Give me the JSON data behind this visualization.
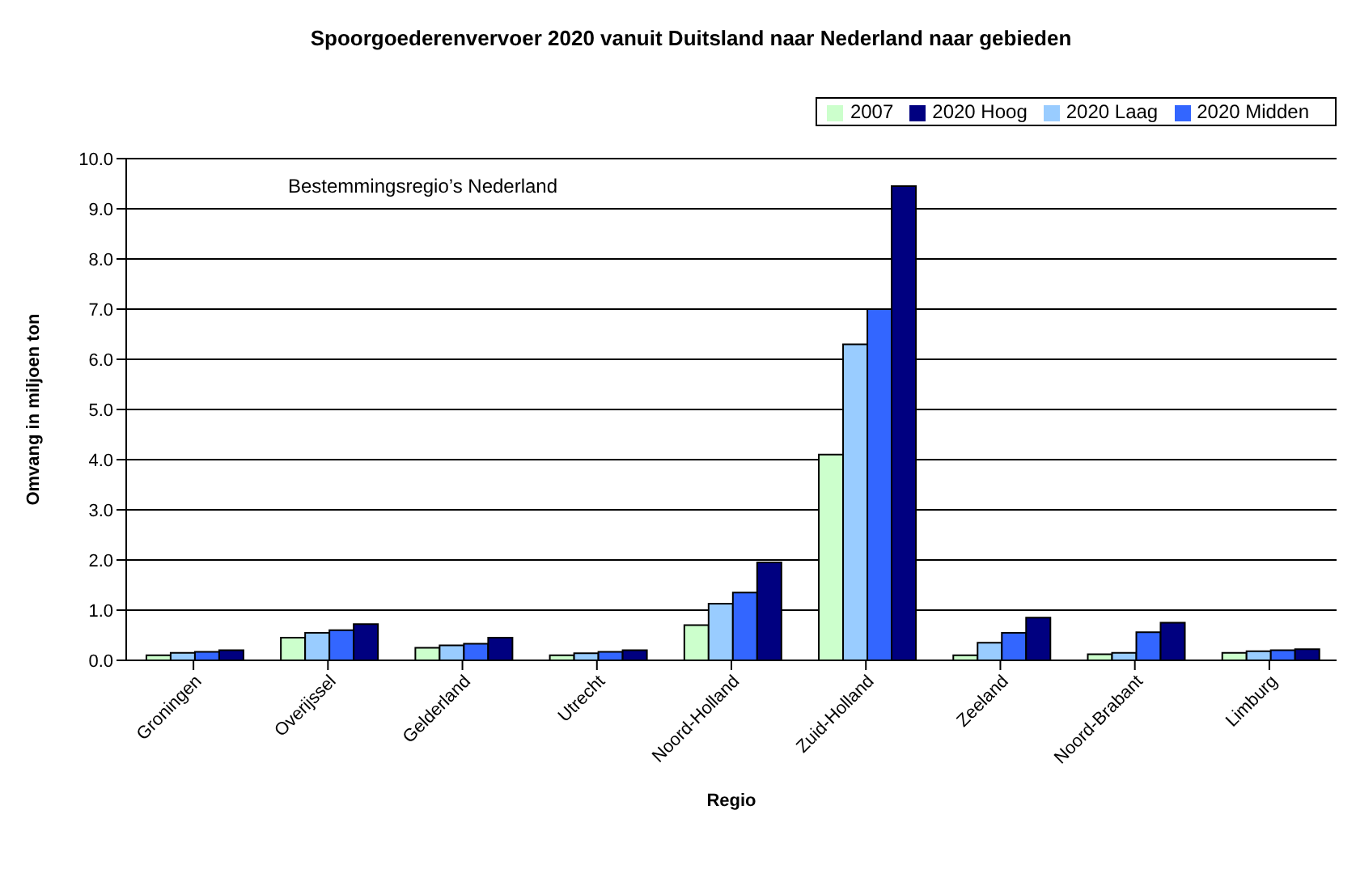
{
  "chart_data": {
    "type": "bar",
    "title": "Spoorgoederenvervoer 2020 vanuit Duitsland naar Nederland naar gebieden",
    "xlabel": "Regio",
    "ylabel": "Omvang in miljoen ton",
    "annotations": [
      "Bestemmingsregio’s Nederland"
    ],
    "categories": [
      "Groningen",
      "Overijssel",
      "Gelderland",
      "Utrecht",
      "Noord-Holland",
      "Zuid-Holland",
      "Zeeland",
      "Noord-Brabant",
      "Limburg"
    ],
    "series": [
      {
        "name": "2007",
        "color": "#ccffcc",
        "values": [
          0.1,
          0.45,
          0.25,
          0.1,
          0.7,
          4.1,
          0.1,
          0.12,
          0.15
        ]
      },
      {
        "name": "2020 Laag",
        "color": "#99ccff",
        "values": [
          0.15,
          0.55,
          0.3,
          0.14,
          1.13,
          6.3,
          0.35,
          0.15,
          0.18
        ]
      },
      {
        "name": "2020 Midden",
        "color": "#3366ff",
        "values": [
          0.17,
          0.6,
          0.33,
          0.17,
          1.35,
          7.0,
          0.55,
          0.56,
          0.2
        ]
      },
      {
        "name": "2020 Hoog",
        "color": "#000080",
        "values": [
          0.2,
          0.72,
          0.45,
          0.2,
          1.95,
          9.45,
          0.85,
          0.75,
          0.22
        ]
      }
    ],
    "ylim": [
      0,
      10
    ],
    "yticks": [
      {
        "value": 0,
        "label": "0.0"
      },
      {
        "value": 1,
        "label": "1.0"
      },
      {
        "value": 2,
        "label": "2.0"
      },
      {
        "value": 3,
        "label": "3.0"
      },
      {
        "value": 4,
        "label": "4.0"
      },
      {
        "value": 5,
        "label": "5.0"
      },
      {
        "value": 6,
        "label": "6.0"
      },
      {
        "value": 7,
        "label": "7.0"
      },
      {
        "value": 8,
        "label": "8.0"
      },
      {
        "value": 9,
        "label": "9.0"
      },
      {
        "value": 10,
        "label": "10.0"
      }
    ],
    "grid": "y",
    "legend": "top right"
  }
}
